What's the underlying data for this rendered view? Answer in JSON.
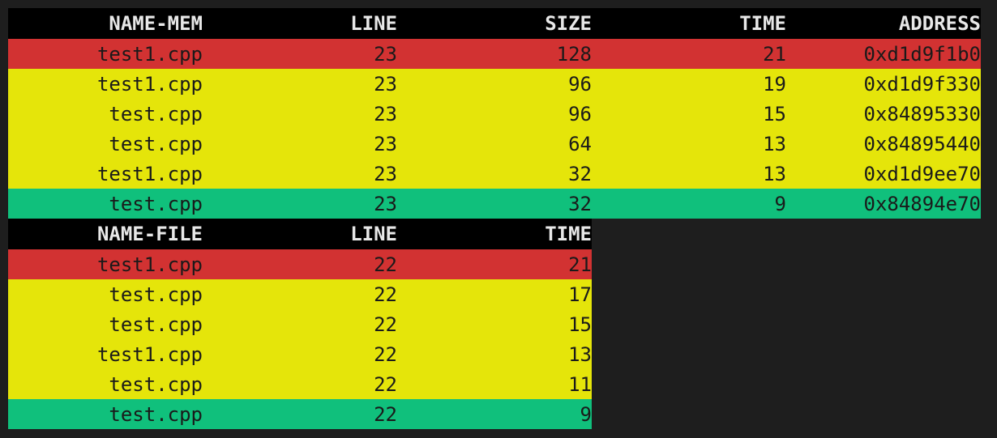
{
  "mem_table": {
    "headers": [
      "NAME-MEM",
      "LINE",
      "SIZE",
      "TIME",
      "ADDRESS"
    ],
    "rows": [
      {
        "color": "red",
        "cells": [
          "test1.cpp",
          "23",
          "128",
          "21",
          "0xd1d9f1b0"
        ]
      },
      {
        "color": "yellow",
        "cells": [
          "test1.cpp",
          "23",
          "96",
          "19",
          "0xd1d9f330"
        ]
      },
      {
        "color": "yellow",
        "cells": [
          "test.cpp",
          "23",
          "96",
          "15",
          "0x84895330"
        ]
      },
      {
        "color": "yellow",
        "cells": [
          "test.cpp",
          "23",
          "64",
          "13",
          "0x84895440"
        ]
      },
      {
        "color": "yellow",
        "cells": [
          "test1.cpp",
          "23",
          "32",
          "13",
          "0xd1d9ee70"
        ]
      },
      {
        "color": "green",
        "cells": [
          "test.cpp",
          "23",
          "32",
          "9",
          "0x84894e70"
        ]
      }
    ]
  },
  "file_table": {
    "headers": [
      "NAME-FILE",
      "LINE",
      "TIME"
    ],
    "rows": [
      {
        "color": "red",
        "cells": [
          "test1.cpp",
          "22",
          "21"
        ]
      },
      {
        "color": "yellow",
        "cells": [
          "test.cpp",
          "22",
          "17"
        ]
      },
      {
        "color": "yellow",
        "cells": [
          "test.cpp",
          "22",
          "15"
        ]
      },
      {
        "color": "yellow",
        "cells": [
          "test1.cpp",
          "22",
          "13"
        ]
      },
      {
        "color": "yellow",
        "cells": [
          "test.cpp",
          "22",
          "11"
        ]
      },
      {
        "color": "green",
        "cells": [
          "test.cpp",
          "22",
          "9"
        ]
      }
    ]
  },
  "colors": {
    "red": "#d23232",
    "yellow": "#e5e50a",
    "green": "#10c07c",
    "header_bg": "#000000",
    "background": "#1e1e1e"
  }
}
